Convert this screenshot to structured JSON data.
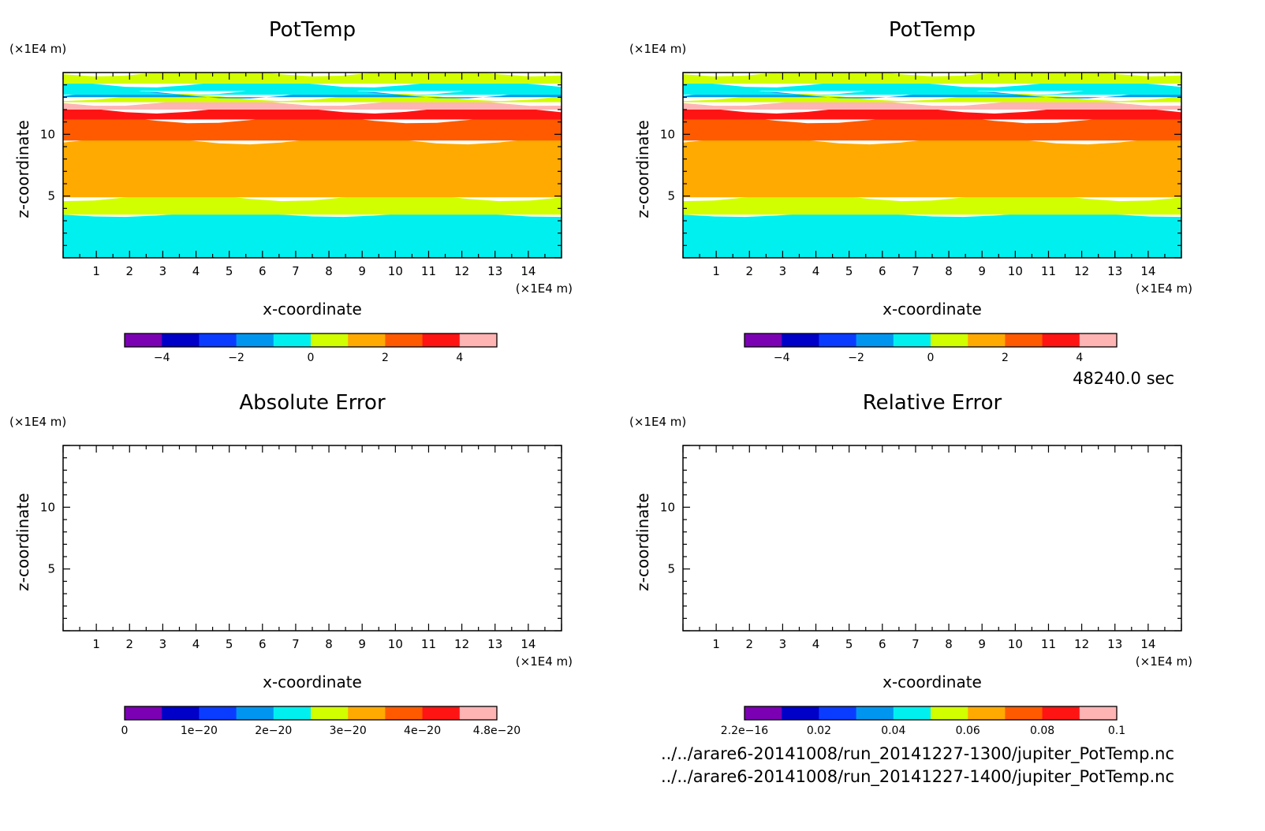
{
  "figure": {
    "time_label": "48240.0 sec",
    "files": [
      "../../arare6-20141008/run_20141227-1300/jupiter_PotTemp.nc",
      "../../arare6-20141008/run_20141227-1400/jupiter_PotTemp.nc"
    ]
  },
  "palette": [
    "#7b00b4",
    "#0000c8",
    "#0a3cff",
    "#0096f0",
    "#00f0f0",
    "#d2ff00",
    "#ffaa00",
    "#ff5a00",
    "#ff1414",
    "#ffb4b4"
  ],
  "chart_data": [
    {
      "type": "heatmap",
      "title": "PotTemp",
      "xlabel": "x-coordinate",
      "ylabel": "z-coordinate",
      "x_unit": "(×1E4 m)",
      "y_unit": "(×1E4 m)",
      "xlim": [
        0,
        15
      ],
      "ylim": [
        0,
        15
      ],
      "xticks": [
        "1",
        "2",
        "3",
        "4",
        "5",
        "6",
        "7",
        "8",
        "9",
        "10",
        "11",
        "12",
        "13",
        "14"
      ],
      "yticks": [
        "5",
        "10"
      ],
      "colorbar": {
        "levels": [
          -5,
          -4,
          -3,
          -2,
          -1,
          0,
          1,
          2,
          3,
          4,
          5
        ],
        "tick_values": [
          -4,
          -2,
          0,
          2,
          4
        ],
        "tick_labels": [
          "−4",
          "−2",
          "0",
          "2",
          "4"
        ]
      },
      "bands": [
        {
          "z_top": 3.5,
          "value": -0.5
        },
        {
          "z_top": 4.9,
          "value": 0.5
        },
        {
          "z_top": 9.5,
          "value": 1.5
        },
        {
          "z_top": 11.2,
          "value": 2.5
        },
        {
          "z_top": 12.0,
          "value": 3.5
        },
        {
          "z_top": 12.6,
          "value": 4.5
        },
        {
          "z_top": 13.0,
          "value": 0.5
        },
        {
          "z_top": 13.2,
          "value": -1.5
        },
        {
          "z_top": 13.5,
          "value": -0.5
        },
        {
          "z_top": 14.1,
          "value": -0.5
        },
        {
          "z_top": 15.0,
          "value": 0.5
        }
      ]
    },
    {
      "type": "heatmap",
      "title": "PotTemp",
      "xlabel": "x-coordinate",
      "ylabel": "z-coordinate",
      "x_unit": "(×1E4 m)",
      "y_unit": "(×1E4 m)",
      "xlim": [
        0,
        15
      ],
      "ylim": [
        0,
        15
      ],
      "xticks": [
        "1",
        "2",
        "3",
        "4",
        "5",
        "6",
        "7",
        "8",
        "9",
        "10",
        "11",
        "12",
        "13",
        "14"
      ],
      "yticks": [
        "5",
        "10"
      ],
      "colorbar": {
        "levels": [
          -5,
          -4,
          -3,
          -2,
          -1,
          0,
          1,
          2,
          3,
          4,
          5
        ],
        "tick_values": [
          -4,
          -2,
          0,
          2,
          4
        ],
        "tick_labels": [
          "−4",
          "−2",
          "0",
          "2",
          "4"
        ]
      },
      "bands": [
        {
          "z_top": 3.5,
          "value": -0.5
        },
        {
          "z_top": 4.9,
          "value": 0.5
        },
        {
          "z_top": 9.5,
          "value": 1.5
        },
        {
          "z_top": 11.2,
          "value": 2.5
        },
        {
          "z_top": 12.0,
          "value": 3.5
        },
        {
          "z_top": 12.6,
          "value": 4.5
        },
        {
          "z_top": 13.0,
          "value": 0.5
        },
        {
          "z_top": 13.2,
          "value": -1.5
        },
        {
          "z_top": 13.5,
          "value": -0.5
        },
        {
          "z_top": 14.1,
          "value": -0.5
        },
        {
          "z_top": 15.0,
          "value": 0.5
        }
      ]
    },
    {
      "type": "heatmap",
      "title": "Absolute Error",
      "xlabel": "x-coordinate",
      "ylabel": "z-coordinate",
      "x_unit": "(×1E4 m)",
      "y_unit": "(×1E4 m)",
      "xlim": [
        0,
        15
      ],
      "ylim": [
        0,
        15
      ],
      "xticks": [
        "1",
        "2",
        "3",
        "4",
        "5",
        "6",
        "7",
        "8",
        "9",
        "10",
        "11",
        "12",
        "13",
        "14"
      ],
      "yticks": [
        "5",
        "10"
      ],
      "colorbar": {
        "levels": [
          0,
          5e-21,
          1e-20,
          1.5e-20,
          2e-20,
          2.5e-20,
          3e-20,
          3.5e-20,
          4e-20,
          4.5e-20,
          4.8e-20
        ],
        "tick_values": [
          0,
          1e-20,
          2e-20,
          3e-20,
          4e-20,
          4.8e-20
        ],
        "tick_labels": [
          "0",
          "1e−20",
          "2e−20",
          "3e−20",
          "4e−20",
          "4.8e−20"
        ]
      },
      "bands": []
    },
    {
      "type": "heatmap",
      "title": "Relative Error",
      "xlabel": "x-coordinate",
      "ylabel": "z-coordinate",
      "x_unit": "(×1E4 m)",
      "y_unit": "(×1E4 m)",
      "xlim": [
        0,
        15
      ],
      "ylim": [
        0,
        15
      ],
      "xticks": [
        "1",
        "2",
        "3",
        "4",
        "5",
        "6",
        "7",
        "8",
        "9",
        "10",
        "11",
        "12",
        "13",
        "14"
      ],
      "yticks": [
        "5",
        "10"
      ],
      "colorbar": {
        "levels": [
          2.2e-16,
          0.01,
          0.02,
          0.03,
          0.04,
          0.05,
          0.06,
          0.07,
          0.08,
          0.09,
          0.1
        ],
        "tick_values": [
          2.2e-16,
          0.02,
          0.04,
          0.06,
          0.08,
          0.1
        ],
        "tick_labels": [
          "2.2e−16",
          "0.02",
          "0.04",
          "0.06",
          "0.08",
          "0.1"
        ]
      },
      "bands": []
    }
  ]
}
